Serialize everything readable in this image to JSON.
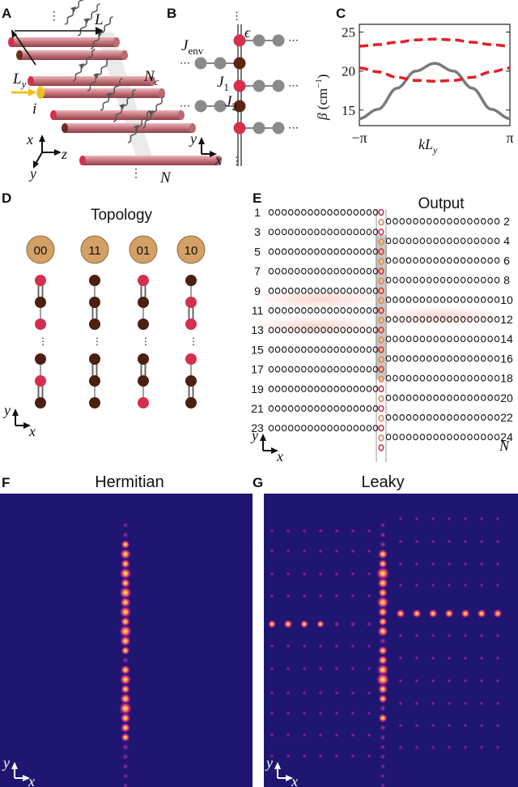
{
  "panels": {
    "a": {
      "label": "A",
      "L": "L",
      "Ly": "L",
      "Ly_sub": "y",
      "Nc": "N",
      "Nc_sub": "c",
      "i": "i",
      "N": "N",
      "axis_x": "x",
      "axis_y": "y",
      "axis_z": "z",
      "dots": "⋮"
    },
    "b": {
      "label": "B",
      "Jenv": "J",
      "Jenv_sub": "env",
      "epsilon": "ϵ",
      "J1": "J",
      "J1_sub": "1",
      "J2": "J",
      "J2_sub": "2",
      "axis_x": "x",
      "axis_y": "y",
      "dots": "⋮",
      "hdots": "⋯"
    },
    "c": {
      "label": "C",
      "ylabel_beta": "β",
      "ylabel_unit": "(cm",
      "ylabel_exp": "−1",
      "ylabel_close": ")",
      "xlabel_k": "kL",
      "xlabel_sub": "y"
    },
    "d": {
      "label": "D",
      "title": "Topology",
      "badges": [
        "00",
        "11",
        "01",
        "10"
      ],
      "axis_x": "x",
      "axis_y": "y",
      "dots": "⋮"
    },
    "e": {
      "label": "E",
      "title": "Output",
      "left_rows": [
        "1",
        "3",
        "5",
        "7",
        "9",
        "11",
        "13",
        "15",
        "17",
        "19",
        "21",
        "23"
      ],
      "right_rows": [
        "2",
        "4",
        "6",
        "8",
        "10",
        "12",
        "14",
        "16",
        "18",
        "20",
        "22",
        "24"
      ],
      "N": "N",
      "axis_x": "x",
      "axis_y": "y"
    },
    "f": {
      "label": "F",
      "title": "Hermitian",
      "axis_x": "x",
      "axis_y": "y"
    },
    "g": {
      "label": "G",
      "title": "Leaky",
      "axis_x": "x",
      "axis_y": "y"
    }
  },
  "chart_data": {
    "type": "line",
    "xlabel": "kL_y",
    "ylabel": "β (cm^-1)",
    "xticks": [
      "−π",
      "π"
    ],
    "yticks": [
      15,
      20,
      25
    ],
    "ylim": [
      13,
      26
    ],
    "xlim": [
      -3.14159,
      3.14159
    ],
    "series": [
      {
        "style": "solid-gray",
        "x": [
          -3.14159,
          -2.36,
          -1.57,
          -0.79,
          0,
          0.79,
          1.57,
          2.36,
          3.14159
        ],
        "values": [
          13.9,
          15.1,
          17.8,
          20.0,
          21.0,
          20.0,
          17.8,
          15.1,
          13.9
        ]
      },
      {
        "style": "dashed-red",
        "x": [
          -3.14159,
          -2.36,
          -1.57,
          -0.79,
          0,
          0.79,
          1.57,
          2.36,
          3.14159
        ],
        "values": [
          23.2,
          23.4,
          23.7,
          24.0,
          24.1,
          24.0,
          23.7,
          23.4,
          23.2
        ]
      },
      {
        "style": "dashed-red",
        "x": [
          -3.14159,
          -2.36,
          -1.57,
          -0.79,
          0,
          0.79,
          1.57,
          2.36,
          3.14159
        ],
        "values": [
          20.4,
          19.9,
          19.2,
          18.8,
          18.7,
          18.8,
          19.2,
          19.9,
          20.4
        ]
      }
    ],
    "colors": {
      "solid": "#7a7a7a",
      "dashed": "#e41f26"
    }
  }
}
